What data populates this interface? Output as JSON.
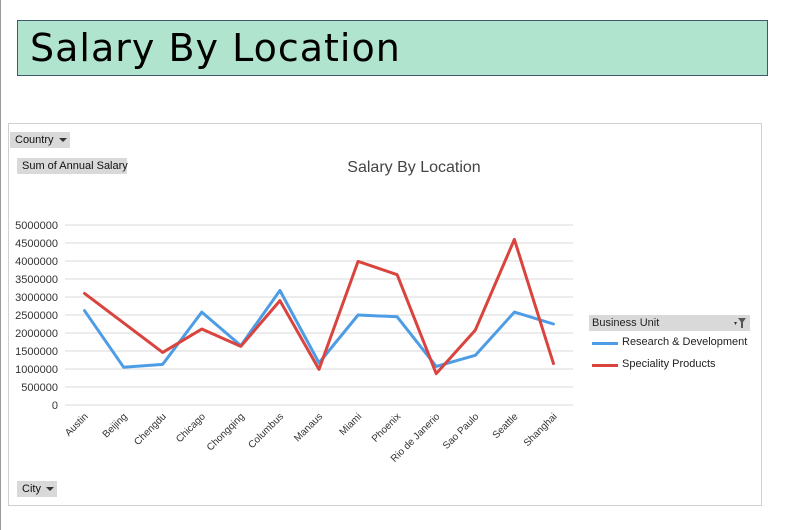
{
  "banner": {
    "title": "Salary By Location"
  },
  "pivot_fields": {
    "filter": "Country",
    "values": "Sum of Annual Salary",
    "axis": "City"
  },
  "legend": {
    "header": "Business Unit"
  },
  "icons": {
    "dropdown": "dropdown-arrow-icon",
    "filter": "filter-icon"
  },
  "colors": {
    "banner_bg": "#b1e4cf",
    "series_rd": "#4d9de6",
    "series_sp": "#d9443f"
  },
  "chart_data": {
    "type": "line",
    "title": "Salary By Location",
    "xlabel": "",
    "ylabel": "",
    "ylim": [
      0,
      5000000
    ],
    "yticks": [
      0,
      500000,
      1000000,
      1500000,
      2000000,
      2500000,
      3000000,
      3500000,
      4000000,
      4500000,
      5000000
    ],
    "grid": true,
    "legend_position": "right",
    "categories": [
      "Austin",
      "Beijing",
      "Chengdu",
      "Chicago",
      "Chongqing",
      "Columbus",
      "Manaus",
      "Miami",
      "Phoenix",
      "Rio de Janerio",
      "Sao Paulo",
      "Seattle",
      "Shanghai"
    ],
    "series": [
      {
        "name": "Research & Development",
        "color": "#4d9de6",
        "values": [
          2620000,
          1050000,
          1130000,
          2580000,
          1650000,
          3180000,
          1170000,
          2500000,
          2450000,
          1070000,
          1380000,
          2580000,
          2250000
        ]
      },
      {
        "name": "Speciality Products",
        "color": "#d9443f",
        "values": [
          3100000,
          null,
          1460000,
          2110000,
          1630000,
          2900000,
          990000,
          3990000,
          3620000,
          870000,
          2080000,
          4600000,
          1150000
        ]
      }
    ]
  }
}
